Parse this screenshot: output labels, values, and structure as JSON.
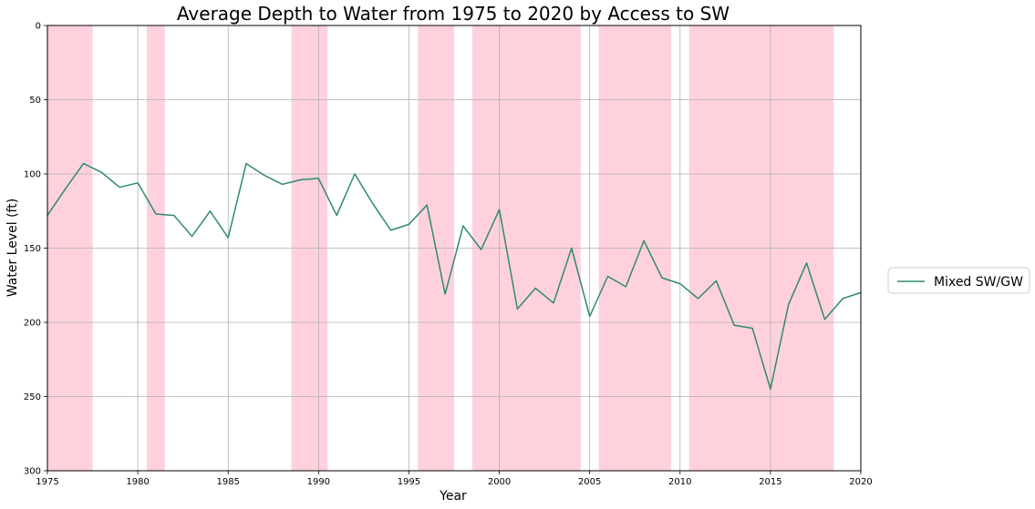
{
  "chart_data": {
    "type": "line",
    "title": "Average Depth to Water from 1975 to 2020 by Access to SW",
    "xlabel": "Year",
    "ylabel": "Water Level (ft)",
    "xlim": [
      1975,
      2020
    ],
    "ylim": [
      0,
      300
    ],
    "y_inverted": true,
    "x_ticks": [
      1975,
      1980,
      1985,
      1990,
      1995,
      2000,
      2005,
      2010,
      2015,
      2020
    ],
    "y_ticks": [
      0,
      50,
      100,
      150,
      200,
      250,
      300
    ],
    "grid": true,
    "legend_position": "right",
    "shaded_periods": [
      [
        1975,
        1977.5
      ],
      [
        1980.5,
        1981.5
      ],
      [
        1988.5,
        1990.5
      ],
      [
        1995.5,
        1997.5
      ],
      [
        1998.5,
        2004.5
      ],
      [
        2005.5,
        2009.5
      ],
      [
        2010.5,
        2018.5
      ]
    ],
    "shade_color": "#ffd1dc",
    "series": [
      {
        "name": "Mixed SW/GW",
        "color": "#2e8b6e",
        "x": [
          1975,
          1976,
          1977,
          1978,
          1979,
          1980,
          1981,
          1982,
          1983,
          1984,
          1985,
          1986,
          1987,
          1988,
          1989,
          1990,
          1991,
          1992,
          1993,
          1994,
          1995,
          1996,
          1997,
          1998,
          1999,
          2000,
          2001,
          2002,
          2003,
          2004,
          2005,
          2006,
          2007,
          2008,
          2009,
          2010,
          2011,
          2012,
          2013,
          2014,
          2015,
          2016,
          2017,
          2018,
          2019,
          2020
        ],
        "values": [
          128,
          110,
          93,
          99,
          109,
          106,
          127,
          128,
          142,
          125,
          143,
          93,
          101,
          107,
          104,
          103,
          128,
          100,
          120,
          138,
          134,
          121,
          181,
          135,
          151,
          124,
          191,
          177,
          187,
          150,
          196,
          169,
          176,
          145,
          170,
          174,
          184,
          172,
          202,
          204,
          245,
          188,
          160,
          198,
          184,
          180
        ]
      }
    ]
  }
}
